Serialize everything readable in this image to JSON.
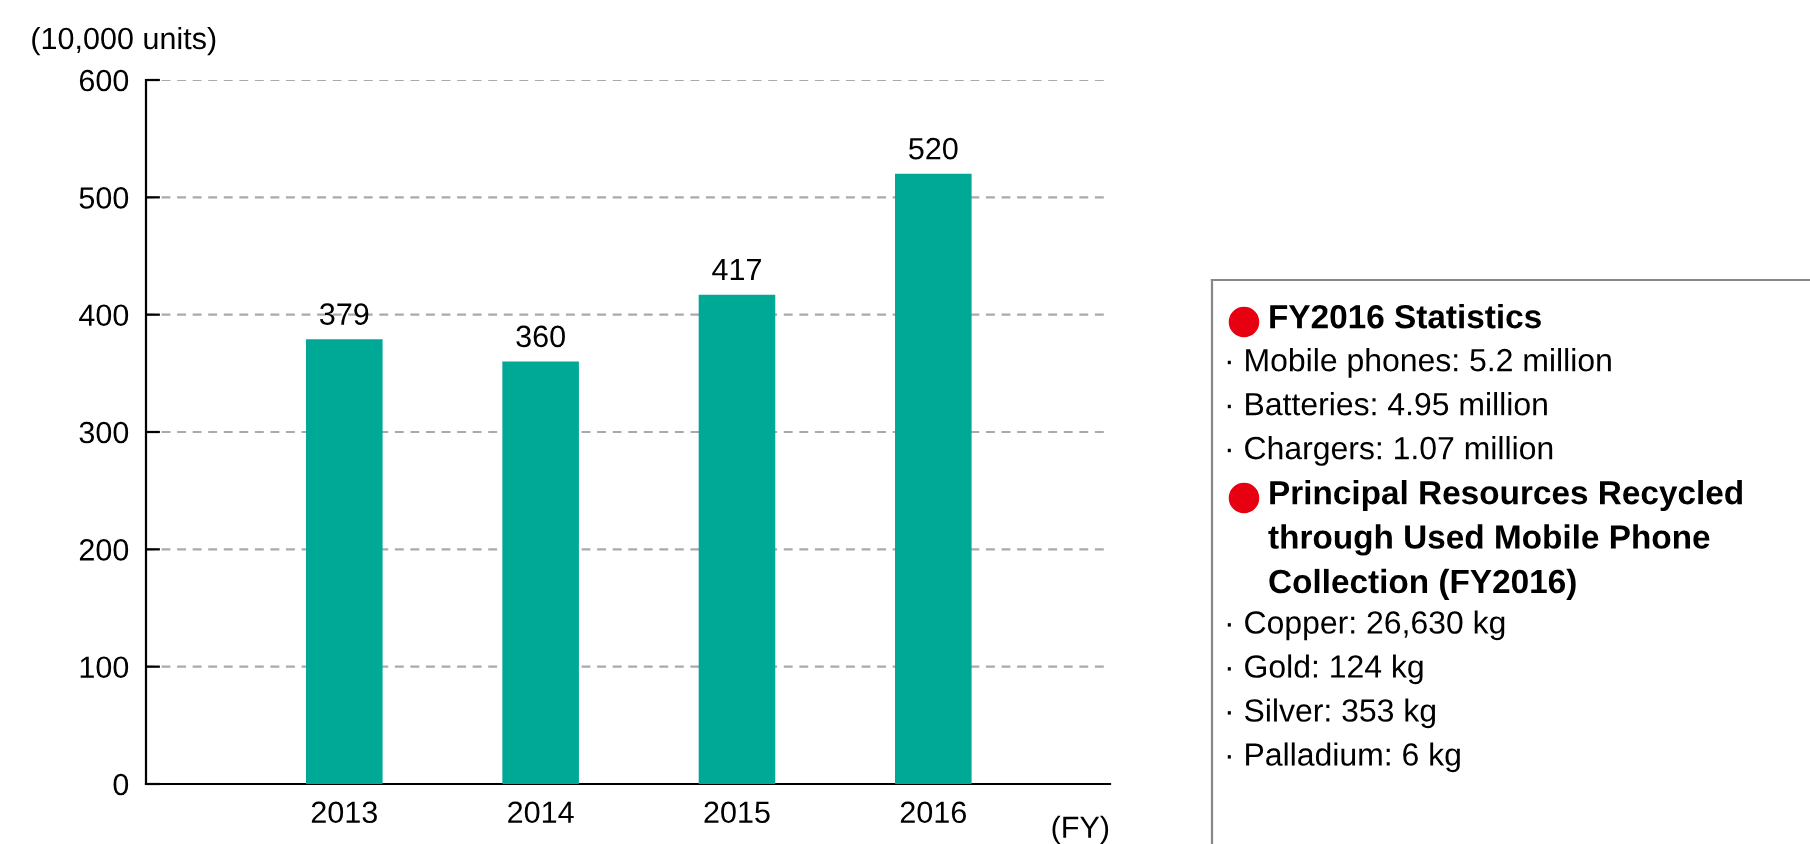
{
  "chart_data": [
    {
      "type": "bar",
      "ylabel": "(10,000 units)",
      "xlabel": "(FY)",
      "categories": [
        "2013",
        "2014",
        "2015",
        "2016"
      ],
      "values": [
        379,
        360,
        417,
        520
      ],
      "color": "#00a896",
      "ylim": [
        0,
        600
      ],
      "yticks": [
        0,
        100,
        200,
        300,
        400,
        500,
        600
      ],
      "grid": "y",
      "data_labels": true
    },
    {
      "type": "other",
      "annotations": [
        "FY2016 Statistics",
        "· Mobile phones: 5.2 million",
        "· Batteries: 4.95 million",
        "· Chargers: 1.07 million",
        "Principal Resources Recycled through Used Mobile Phone Collection (FY2016)",
        "· Copper: 26,630 kg",
        "· Gold: 124 kg",
        "· Silver: 353 kg",
        "· Palladium: 6 kg"
      ]
    }
  ]
}
